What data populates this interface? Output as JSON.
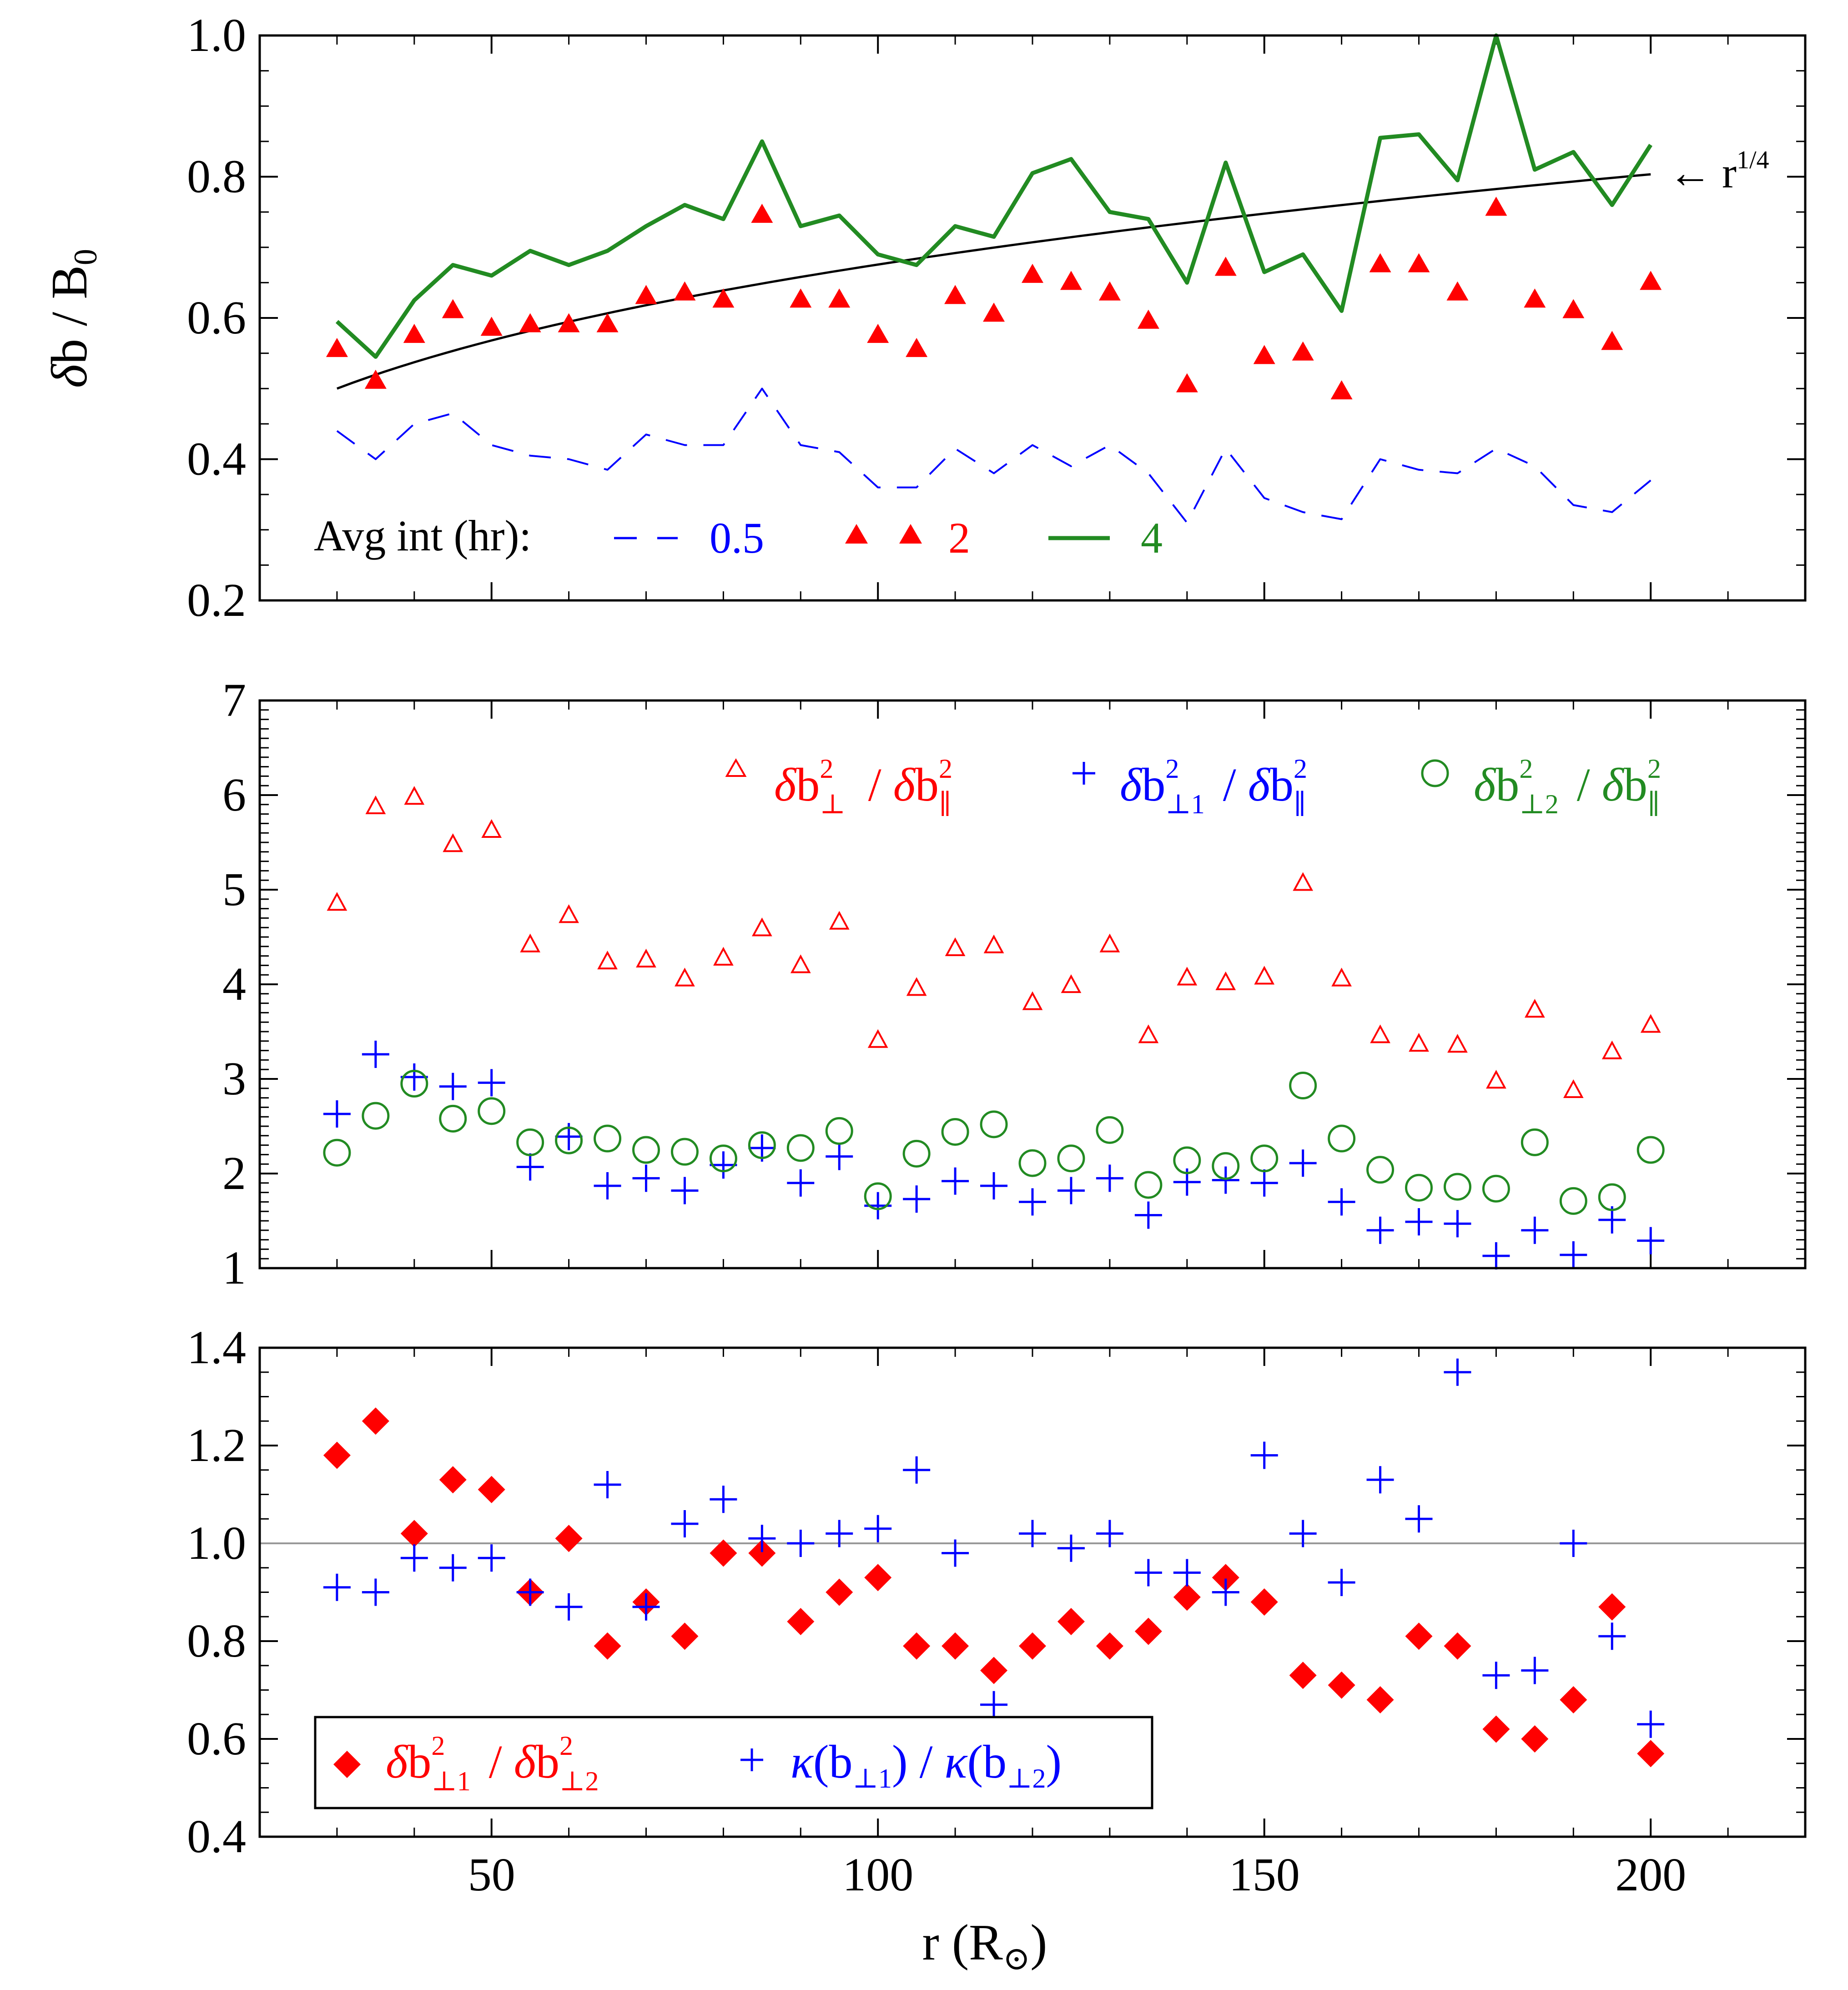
{
  "colors": {
    "red": "#ff0000",
    "blue": "#0000ff",
    "green": "#228b22",
    "black": "#000000",
    "gray": "#999999"
  },
  "x_axis": {
    "label": "r (R",
    "label_sub": "⊙",
    "label_close": ")",
    "ticks": [
      50,
      100,
      150,
      200
    ],
    "xlim": [
      20,
      220
    ]
  },
  "chart_data": [
    {
      "type": "scatter",
      "ylabel": {
        "delta": "δ",
        "main": "b / B",
        "sub": "0"
      },
      "ylim": [
        0.2,
        1.0
      ],
      "yticks": [
        "0.2",
        "0.4",
        "0.6",
        "0.8",
        "1.0"
      ],
      "x": [
        30,
        35,
        40,
        45,
        50,
        55,
        60,
        65,
        70,
        75,
        80,
        85,
        90,
        95,
        100,
        105,
        110,
        115,
        120,
        125,
        130,
        135,
        140,
        145,
        150,
        155,
        160,
        165,
        170,
        175,
        180,
        185,
        190,
        195,
        200
      ],
      "series": [
        {
          "name": "0.5",
          "style": "dashed-line",
          "color": "blue",
          "values": [
            0.44,
            0.4,
            0.45,
            0.465,
            0.42,
            0.405,
            0.4,
            0.385,
            0.435,
            0.42,
            0.42,
            0.5,
            0.42,
            0.41,
            0.36,
            0.36,
            0.415,
            0.38,
            0.42,
            0.39,
            0.42,
            0.38,
            0.31,
            0.415,
            0.345,
            0.325,
            0.315,
            0.4,
            0.385,
            0.38,
            0.415,
            0.39,
            0.335,
            0.325,
            0.37
          ]
        },
        {
          "name": "2",
          "style": "filled-triangle",
          "color": "red",
          "values": [
            0.555,
            0.51,
            0.575,
            0.61,
            0.585,
            0.59,
            0.59,
            0.59,
            0.63,
            0.635,
            0.625,
            0.745,
            0.625,
            0.625,
            0.575,
            0.555,
            0.63,
            0.605,
            0.66,
            0.65,
            0.635,
            0.595,
            0.505,
            0.67,
            0.545,
            0.55,
            0.495,
            0.675,
            0.675,
            0.635,
            0.755,
            0.625,
            0.61,
            0.565,
            0.65
          ]
        },
        {
          "name": "4",
          "style": "solid-line",
          "color": "green",
          "values": [
            0.595,
            0.545,
            0.625,
            0.675,
            0.66,
            0.695,
            0.675,
            0.695,
            0.73,
            0.76,
            0.74,
            0.85,
            0.73,
            0.745,
            0.69,
            0.675,
            0.73,
            0.715,
            0.805,
            0.825,
            0.75,
            0.74,
            0.65,
            0.82,
            0.665,
            0.69,
            0.61,
            0.855,
            0.86,
            0.795,
            1.0,
            0.81,
            0.835,
            0.76,
            0.845
          ]
        }
      ],
      "fit": {
        "name": "r^(1/4)",
        "label": "r",
        "label_exp": "1/4",
        "arrow": "←",
        "x_start": 30,
        "x_end": 200,
        "y_at_start": 0.5
      },
      "legend": {
        "title": "Avg int (hr):",
        "items": [
          {
            "label": "0.5",
            "color": "blue"
          },
          {
            "label": "2",
            "color": "red"
          },
          {
            "label": "4",
            "color": "green"
          }
        ]
      }
    },
    {
      "type": "scatter",
      "ylim": [
        1,
        7
      ],
      "yticks": [
        "1",
        "2",
        "3",
        "4",
        "5",
        "6",
        "7"
      ],
      "x": [
        30,
        35,
        40,
        45,
        50,
        55,
        60,
        65,
        70,
        75,
        80,
        85,
        90,
        95,
        100,
        105,
        110,
        115,
        120,
        125,
        130,
        135,
        140,
        145,
        150,
        155,
        160,
        165,
        170,
        175,
        180,
        185,
        190,
        195,
        200
      ],
      "series": [
        {
          "name": "δb⊥² / δb∥²",
          "marker": "open-triangle",
          "color": "red",
          "values": [
            4.85,
            5.87,
            5.97,
            5.47,
            5.62,
            4.41,
            4.72,
            4.23,
            4.25,
            4.05,
            4.27,
            4.58,
            4.19,
            4.65,
            3.4,
            3.95,
            4.37,
            4.4,
            3.8,
            3.98,
            4.41,
            3.45,
            4.06,
            4.01,
            4.07,
            5.06,
            4.05,
            3.45,
            3.36,
            3.35,
            2.97,
            3.72,
            2.87,
            3.28,
            3.56
          ]
        },
        {
          "name": "δb⊥1² / δb∥²",
          "marker": "plus",
          "color": "blue",
          "values": [
            2.63,
            3.26,
            3.02,
            2.92,
            2.96,
            2.07,
            2.39,
            1.87,
            1.95,
            1.82,
            2.09,
            2.27,
            1.9,
            2.18,
            1.66,
            1.73,
            1.92,
            1.87,
            1.7,
            1.82,
            1.95,
            1.56,
            1.91,
            1.93,
            1.9,
            2.11,
            1.7,
            1.4,
            1.49,
            1.47,
            1.13,
            1.4,
            1.14,
            1.51,
            1.29
          ]
        },
        {
          "name": "δb⊥2² / δb∥²",
          "marker": "open-circle",
          "color": "green",
          "values": [
            2.22,
            2.61,
            2.95,
            2.58,
            2.66,
            2.33,
            2.35,
            2.37,
            2.25,
            2.23,
            2.16,
            2.3,
            2.27,
            2.45,
            1.76,
            2.21,
            2.44,
            2.52,
            2.11,
            2.16,
            2.46,
            1.88,
            2.14,
            2.08,
            2.16,
            2.93,
            2.37,
            2.04,
            1.85,
            1.86,
            1.84,
            2.33,
            1.71,
            1.75,
            2.25
          ]
        }
      ],
      "legend": {
        "items": [
          {
            "delta": "δ",
            "num": "b",
            "num_sub": "⊥",
            "sup": "2",
            "den_delta": "δ",
            "den": "b",
            "den_sub": "∥",
            "color": "red"
          },
          {
            "delta": "δ",
            "num": "b",
            "num_sub": "⊥1",
            "sup": "2",
            "den_delta": "δ",
            "den": "b",
            "den_sub": "∥",
            "color": "blue"
          },
          {
            "delta": "δ",
            "num": "b",
            "num_sub": "⊥2",
            "sup": "2",
            "den_delta": "δ",
            "den": "b",
            "den_sub": "∥",
            "color": "green"
          }
        ]
      }
    },
    {
      "type": "scatter",
      "ylim": [
        0.4,
        1.4
      ],
      "yticks": [
        "0.4",
        "0.6",
        "0.8",
        "1.0",
        "1.2",
        "1.4"
      ],
      "reference_line": 1.0,
      "x": [
        30,
        35,
        40,
        45,
        50,
        55,
        60,
        65,
        70,
        75,
        80,
        85,
        90,
        95,
        100,
        105,
        110,
        115,
        120,
        125,
        130,
        135,
        140,
        145,
        150,
        155,
        160,
        165,
        170,
        175,
        180,
        185,
        190,
        195,
        200
      ],
      "series": [
        {
          "name": "δb⊥1² / δb⊥2²",
          "marker": "filled-diamond",
          "color": "red",
          "values": [
            1.18,
            1.25,
            1.02,
            1.13,
            1.11,
            0.9,
            1.01,
            0.79,
            0.88,
            0.81,
            0.98,
            0.98,
            0.84,
            0.9,
            0.93,
            0.79,
            0.79,
            0.74,
            0.79,
            0.84,
            0.79,
            0.82,
            0.89,
            0.93,
            0.88,
            0.73,
            0.71,
            0.68,
            0.81,
            0.79,
            0.62,
            0.6,
            0.68,
            0.87,
            0.57
          ]
        },
        {
          "name": "κ(b⊥1) / κ(b⊥2)",
          "marker": "plus",
          "color": "blue",
          "values": [
            0.91,
            0.9,
            0.97,
            0.95,
            0.97,
            0.9,
            0.87,
            1.12,
            0.87,
            1.04,
            1.09,
            1.01,
            1.0,
            1.02,
            1.03,
            1.15,
            0.98,
            0.67,
            1.02,
            0.99,
            1.02,
            0.94,
            0.94,
            0.9,
            1.18,
            1.02,
            0.92,
            1.13,
            1.05,
            1.35,
            0.73,
            0.74,
            1.0,
            0.81,
            0.63
          ]
        }
      ],
      "legend": {
        "items": [
          {
            "delta": "δ",
            "num": "b",
            "num_sub": "⊥1",
            "sup": "2",
            "den_delta": "δ",
            "den": "b",
            "den_sub": "⊥2",
            "color": "red"
          },
          {
            "kappa": "κ",
            "num": "(b",
            "num_sub": "⊥1",
            "num_close": ")",
            "den_kappa": "κ",
            "den": "(b",
            "den_sub": "⊥2",
            "den_close": ")",
            "color": "blue"
          }
        ]
      }
    }
  ]
}
